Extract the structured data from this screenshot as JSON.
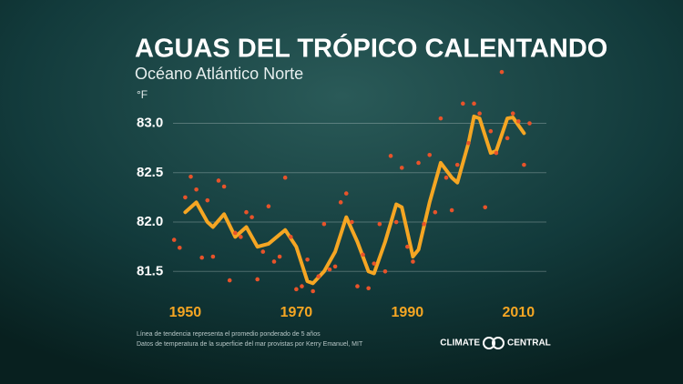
{
  "chart_data": {
    "type": "line",
    "title": "AGUAS DEL TRÓPICO CALENTANDO",
    "subtitle": "Océano Atlántico Norte",
    "y_unit": "°F",
    "xlim": [
      1946,
      2017
    ],
    "xticks": [
      1950,
      1970,
      1990,
      2010
    ],
    "ylim": [
      81.3,
      83.3
    ],
    "yticks": [
      {
        "value": 81.5,
        "label": "81.5"
      },
      {
        "value": 82.0,
        "label": "82.0"
      },
      {
        "value": 82.5,
        "label": "82.5"
      },
      {
        "value": 83.0,
        "label": "83.0"
      }
    ],
    "grid": true,
    "points": {
      "color": "#e8532a",
      "x": [
        1948,
        1949,
        1950,
        1951,
        1952,
        1953,
        1954,
        1955,
        1956,
        1957,
        1958,
        1959,
        1960,
        1961,
        1962,
        1963,
        1964,
        1965,
        1966,
        1967,
        1968,
        1969,
        1970,
        1971,
        1972,
        1973,
        1974,
        1975,
        1976,
        1977,
        1978,
        1979,
        1980,
        1981,
        1982,
        1983,
        1984,
        1985,
        1986,
        1987,
        1988,
        1989,
        1990,
        1991,
        1992,
        1993,
        1994,
        1995,
        1996,
        1997,
        1998,
        1999,
        2000,
        2001,
        2002,
        2003,
        2004,
        2005,
        2006,
        2007,
        2008,
        2009,
        2010,
        2011,
        2012
      ],
      "values": [
        81.82,
        81.74,
        82.25,
        82.46,
        82.33,
        81.64,
        82.22,
        81.65,
        82.42,
        82.36,
        81.41,
        81.89,
        81.85,
        82.1,
        82.05,
        81.42,
        81.7,
        82.16,
        81.6,
        81.65,
        82.45,
        81.85,
        81.32,
        81.35,
        81.62,
        81.3,
        81.45,
        81.98,
        81.52,
        81.55,
        82.2,
        82.29,
        82.0,
        81.35,
        81.67,
        81.33,
        81.58,
        81.98,
        81.5,
        82.67,
        82.0,
        82.55,
        81.75,
        81.6,
        82.6,
        81.98,
        82.68,
        82.1,
        83.05,
        82.45,
        82.12,
        82.58,
        83.2,
        82.8,
        83.2,
        83.1,
        82.15,
        82.92,
        82.7,
        83.52,
        82.85,
        83.1,
        83.02,
        82.58,
        83.0
      ]
    },
    "trend": {
      "color": "#f5a623",
      "x": [
        1950,
        1952,
        1954,
        1955,
        1957,
        1959,
        1961,
        1963,
        1965,
        1968,
        1970,
        1972,
        1973,
        1975,
        1977,
        1979,
        1981,
        1983,
        1984,
        1986,
        1988,
        1989,
        1991,
        1992,
        1994,
        1996,
        1998,
        1999,
        2001,
        2002,
        2003,
        2005,
        2006,
        2008,
        2009,
        2011
      ],
      "values": [
        82.1,
        82.2,
        82.0,
        81.95,
        82.08,
        81.85,
        81.95,
        81.75,
        81.78,
        81.92,
        81.75,
        81.4,
        81.38,
        81.5,
        81.7,
        82.05,
        81.8,
        81.5,
        81.48,
        81.8,
        82.18,
        82.15,
        81.65,
        81.72,
        82.2,
        82.6,
        82.45,
        82.4,
        82.8,
        83.07,
        83.05,
        82.7,
        82.72,
        83.05,
        83.06,
        82.9
      ]
    },
    "notes": [
      "Línea de tendencia representa el promedio ponderado de 5 años",
      "Datos de temperatura de la superficie del mar provistas por Kerry Emanuel, MIT"
    ],
    "logo": [
      "CLIMATE",
      "CENTRAL"
    ]
  }
}
